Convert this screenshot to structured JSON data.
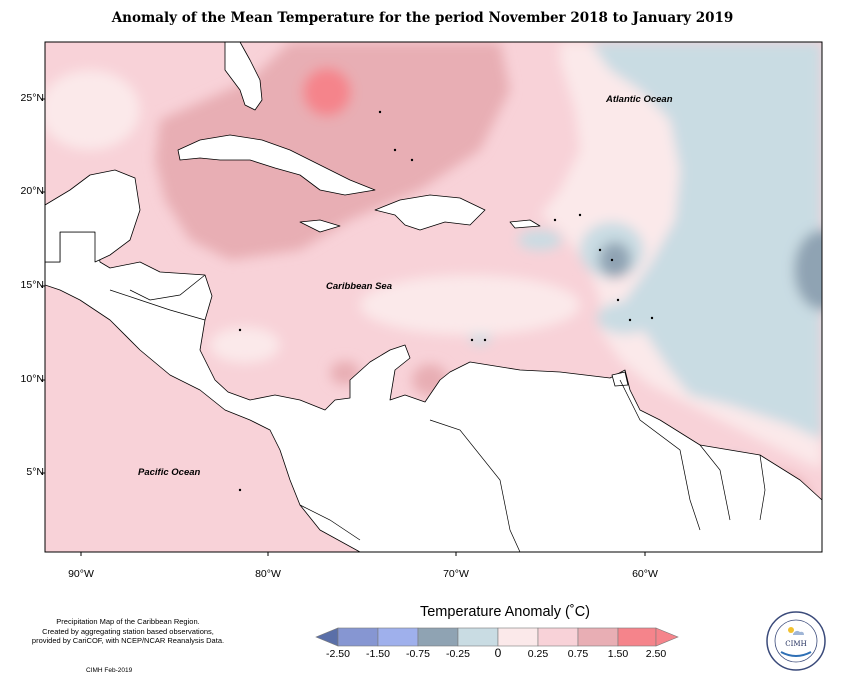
{
  "title": "Anomaly of the Mean Temperature for the period November 2018 to January 2019",
  "map": {
    "lat_labels": [
      "25°N",
      "20°N",
      "15°N",
      "10°N",
      "5°N"
    ],
    "lon_labels": [
      "90°W",
      "80°W",
      "70°W",
      "60°W"
    ],
    "place_labels": {
      "atlantic": "Atlantic Ocean",
      "caribbean": "Caribbean Sea",
      "pacific": "Pacific Ocean"
    }
  },
  "legend": {
    "title": "Temperature Anomaly (˚C)",
    "ticks": [
      "-2.50",
      "-1.50",
      "-0.75",
      "-0.25",
      "0",
      "0.25",
      "0.75",
      "1.50",
      "2.50"
    ],
    "colors": [
      "#5a6fa8",
      "#8696d2",
      "#9fb0ec",
      "#8fa3b3",
      "#c9dce3",
      "#fbe9ea",
      "#f8d2d8",
      "#e8aeb4",
      "#f5848b"
    ]
  },
  "footer": {
    "note_lines": [
      "Precipitation Map of the Caribbean Region.",
      "Created by aggregating station based observations,",
      "provided by CariCOF, with NCEP/NCAR Reanalysis Data."
    ],
    "credit": "CIMH Feb-2019",
    "logo_text": "CIMH"
  }
}
